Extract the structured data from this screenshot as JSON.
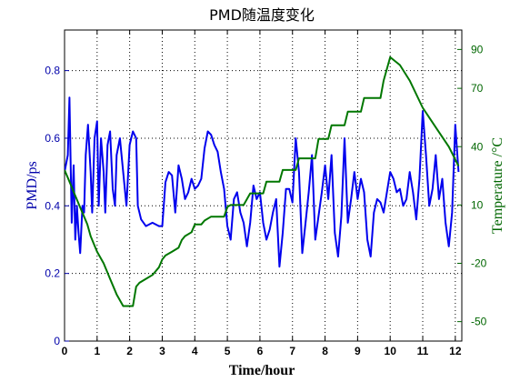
{
  "chart_data": {
    "type": "line",
    "title": "PMD随温度变化",
    "xlabel": "Time/hour",
    "ylabel_left": "PMD/ps",
    "ylabel_right": "Temperature /°C",
    "xlim": [
      0,
      12.2
    ],
    "ylim_left": [
      0,
      0.92
    ],
    "ylim_right": [
      -60,
      100
    ],
    "x_ticks": [
      0,
      1,
      2,
      3,
      4,
      5,
      6,
      7,
      8,
      9,
      10,
      11,
      12
    ],
    "y_ticks_left": [
      0,
      0.2,
      0.4,
      0.6,
      0.8
    ],
    "y_ticks_right": [
      -50,
      -20,
      10,
      40,
      70,
      90
    ],
    "grid": true,
    "colors": {
      "pmd": "#0000ee",
      "temperature": "#007700",
      "left_axis_text": "#0000aa",
      "right_axis_text": "#006600"
    },
    "series": [
      {
        "axis": "left",
        "x": [
          0,
          0.1,
          0.15,
          0.22,
          0.28,
          0.33,
          0.38,
          0.43,
          0.48,
          0.55,
          0.6,
          0.65,
          0.72,
          0.8,
          0.85,
          0.92,
          1.0,
          1.05,
          1.12,
          1.2,
          1.25,
          1.32,
          1.4,
          1.48,
          1.55,
          1.6,
          1.7,
          1.8,
          1.9,
          2.0,
          2.1,
          2.2,
          2.25,
          2.35,
          2.5,
          2.7,
          2.9,
          3.0,
          3.1,
          3.2,
          3.3,
          3.4,
          3.5,
          3.6,
          3.7,
          3.8,
          3.9,
          4.0,
          4.1,
          4.2,
          4.3,
          4.4,
          4.5,
          4.6,
          4.7,
          4.8,
          4.9,
          5.0,
          5.1,
          5.2,
          5.3,
          5.4,
          5.5,
          5.6,
          5.7,
          5.8,
          5.9,
          6.0,
          6.1,
          6.2,
          6.3,
          6.4,
          6.5,
          6.6,
          6.7,
          6.8,
          6.9,
          7.0,
          7.1,
          7.2,
          7.3,
          7.4,
          7.5,
          7.6,
          7.7,
          7.8,
          7.9,
          8.0,
          8.1,
          8.2,
          8.3,
          8.4,
          8.5,
          8.6,
          8.7,
          8.8,
          8.9,
          9.0,
          9.1,
          9.2,
          9.3,
          9.4,
          9.5,
          9.6,
          9.7,
          9.8,
          9.9,
          10.0,
          10.1,
          10.2,
          10.3,
          10.4,
          10.5,
          10.6,
          10.7,
          10.8,
          10.9,
          11.0,
          11.1,
          11.2,
          11.3,
          11.4,
          11.5,
          11.6,
          11.7,
          11.8,
          11.9,
          12.0,
          12.1
        ],
        "y": [
          0.5,
          0.55,
          0.72,
          0.35,
          0.52,
          0.3,
          0.4,
          0.32,
          0.26,
          0.4,
          0.38,
          0.55,
          0.64,
          0.5,
          0.38,
          0.6,
          0.65,
          0.4,
          0.6,
          0.5,
          0.38,
          0.58,
          0.62,
          0.45,
          0.4,
          0.55,
          0.6,
          0.5,
          0.4,
          0.58,
          0.62,
          0.6,
          0.4,
          0.36,
          0.34,
          0.35,
          0.34,
          0.34,
          0.47,
          0.5,
          0.49,
          0.38,
          0.52,
          0.48,
          0.42,
          0.44,
          0.48,
          0.45,
          0.46,
          0.48,
          0.57,
          0.62,
          0.61,
          0.58,
          0.56,
          0.5,
          0.45,
          0.34,
          0.3,
          0.42,
          0.44,
          0.38,
          0.35,
          0.28,
          0.35,
          0.46,
          0.42,
          0.44,
          0.35,
          0.3,
          0.33,
          0.38,
          0.42,
          0.22,
          0.32,
          0.45,
          0.45,
          0.41,
          0.6,
          0.5,
          0.26,
          0.35,
          0.44,
          0.55,
          0.3,
          0.37,
          0.44,
          0.52,
          0.42,
          0.55,
          0.32,
          0.25,
          0.37,
          0.6,
          0.35,
          0.42,
          0.5,
          0.42,
          0.48,
          0.44,
          0.3,
          0.25,
          0.38,
          0.42,
          0.41,
          0.38,
          0.44,
          0.5,
          0.48,
          0.44,
          0.45,
          0.4,
          0.42,
          0.5,
          0.44,
          0.36,
          0.48,
          0.68,
          0.55,
          0.4,
          0.45,
          0.55,
          0.42,
          0.48,
          0.35,
          0.28,
          0.38,
          0.64,
          0.5
        ]
      },
      {
        "axis": "right",
        "x": [
          0,
          0.1,
          0.2,
          0.3,
          0.4,
          0.5,
          0.6,
          0.7,
          0.8,
          0.9,
          1.0,
          1.2,
          1.4,
          1.6,
          1.8,
          2.0,
          2.1,
          2.2,
          2.3,
          2.5,
          2.7,
          2.8,
          2.9,
          3.0,
          3.1,
          3.3,
          3.5,
          3.6,
          3.7,
          3.9,
          4.0,
          4.2,
          4.3,
          4.5,
          4.9,
          5.0,
          5.1,
          5.5,
          5.6,
          5.7,
          6.1,
          6.2,
          6.3,
          6.6,
          6.7,
          7.1,
          7.2,
          7.4,
          7.7,
          7.8,
          8.1,
          8.2,
          8.3,
          8.6,
          8.7,
          9.1,
          9.2,
          9.7,
          9.8,
          10.0,
          10.3,
          10.6,
          11.0,
          11.4,
          11.8,
          12.1
        ],
        "y": [
          28,
          24,
          20,
          16,
          12,
          8,
          4,
          0,
          -6,
          -10,
          -14,
          -20,
          -28,
          -36,
          -42,
          -42,
          -42,
          -32,
          -30,
          -28,
          -26,
          -24,
          -22,
          -18,
          -16,
          -14,
          -12,
          -8,
          -6,
          -4,
          0,
          0,
          2,
          4,
          4,
          9,
          10,
          10,
          13,
          16,
          16,
          22,
          22,
          22,
          28,
          28,
          34,
          34,
          34,
          44,
          44,
          51,
          51,
          51,
          58,
          58,
          65,
          65,
          74,
          86,
          82,
          74,
          60,
          50,
          40,
          30
        ]
      }
    ]
  }
}
